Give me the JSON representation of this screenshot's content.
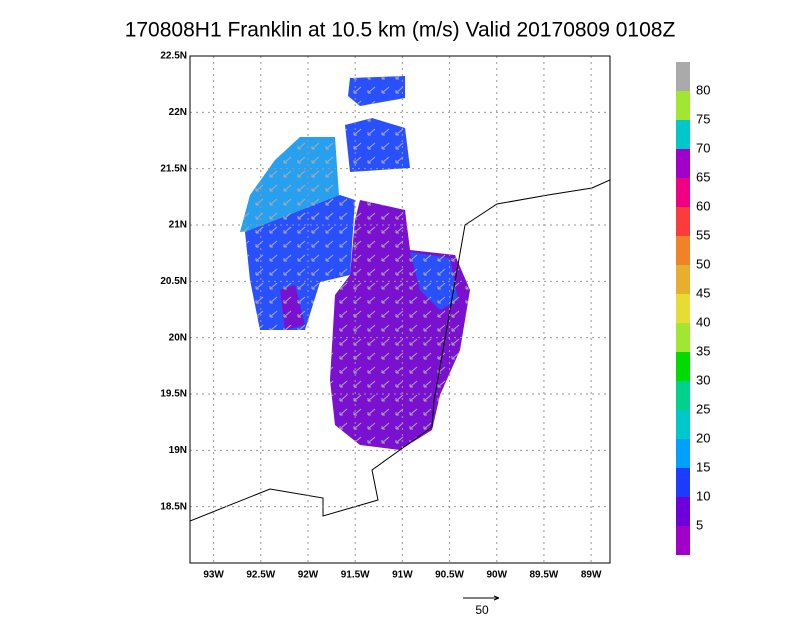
{
  "title": "170808H1 Franklin at 10.5 km (m/s) Valid 20170809 0108Z",
  "map": {
    "xlim": [
      -93.25,
      -88.8
    ],
    "ylim": [
      18.0,
      22.5
    ],
    "xticks": [
      {
        "value": -93,
        "label": "93W"
      },
      {
        "value": -92.5,
        "label": "92.5W"
      },
      {
        "value": -92,
        "label": "92W"
      },
      {
        "value": -91.5,
        "label": "91.5W"
      },
      {
        "value": -91,
        "label": "91W"
      },
      {
        "value": -90.5,
        "label": "90.5W"
      },
      {
        "value": -90,
        "label": "90W"
      },
      {
        "value": -89.5,
        "label": "89.5W"
      },
      {
        "value": -89,
        "label": "89W"
      }
    ],
    "yticks": [
      {
        "value": 18.5,
        "label": "18.5N"
      },
      {
        "value": 19,
        "label": "19N"
      },
      {
        "value": 19.5,
        "label": "19.5N"
      },
      {
        "value": 20,
        "label": "20N"
      },
      {
        "value": 20.5,
        "label": "20.5N"
      },
      {
        "value": 21,
        "label": "21N"
      },
      {
        "value": 21.5,
        "label": "21.5N"
      },
      {
        "value": 22,
        "label": "22N"
      },
      {
        "value": 22.5,
        "label": "22.5N"
      }
    ],
    "grid": true
  },
  "colorbar": {
    "lim": [
      0,
      85
    ],
    "ticks": [
      5,
      10,
      15,
      20,
      25,
      30,
      35,
      40,
      45,
      50,
      55,
      60,
      65,
      70,
      75,
      80
    ],
    "colors": [
      "#a000c8",
      "#6e00dc",
      "#1e3cff",
      "#00a0ff",
      "#00c8c8",
      "#00d28c",
      "#00dc00",
      "#a0e632",
      "#e6dc32",
      "#e6af2d",
      "#f08228",
      "#fa3c3c",
      "#f00082",
      "#a000c8",
      "#00c8c8",
      "#a0e632",
      "#aaaaaa"
    ]
  },
  "reference_vector": 50
}
